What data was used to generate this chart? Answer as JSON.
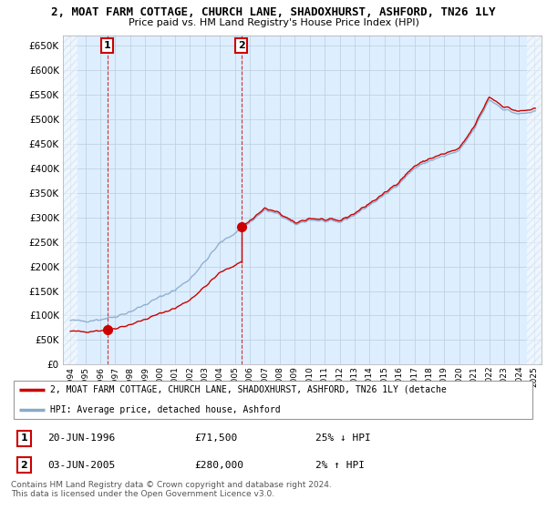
{
  "title": "2, MOAT FARM COTTAGE, CHURCH LANE, SHADOXHURST, ASHFORD, TN26 1LY",
  "subtitle": "Price paid vs. HM Land Registry's House Price Index (HPI)",
  "ylabel_ticks": [
    0,
    50000,
    100000,
    150000,
    200000,
    250000,
    300000,
    350000,
    400000,
    450000,
    500000,
    550000,
    600000,
    650000
  ],
  "ylim": [
    0,
    670000
  ],
  "sale1_yr": 1996.46,
  "sale1_price": 71500,
  "sale2_yr": 2005.42,
  "sale2_price": 280000,
  "red_line_label": "2, MOAT FARM COTTAGE, CHURCH LANE, SHADOXHURST, ASHFORD, TN26 1LY (detache",
  "blue_line_label": "HPI: Average price, detached house, Ashford",
  "sale1_ann": "20-JUN-1996",
  "sale1_price_str": "£71,500",
  "sale1_hpi_str": "25% ↓ HPI",
  "sale2_ann": "03-JUN-2005",
  "sale2_price_str": "£280,000",
  "sale2_hpi_str": "2% ↑ HPI",
  "footer": "Contains HM Land Registry data © Crown copyright and database right 2024.\nThis data is licensed under the Open Government Licence v3.0.",
  "bg_color": "#ffffff",
  "plot_bg_color": "#ddeeff",
  "grid_color": "#bbccdd",
  "red_color": "#cc0000",
  "blue_color": "#88aacc",
  "hatch_color": "#ccddee"
}
